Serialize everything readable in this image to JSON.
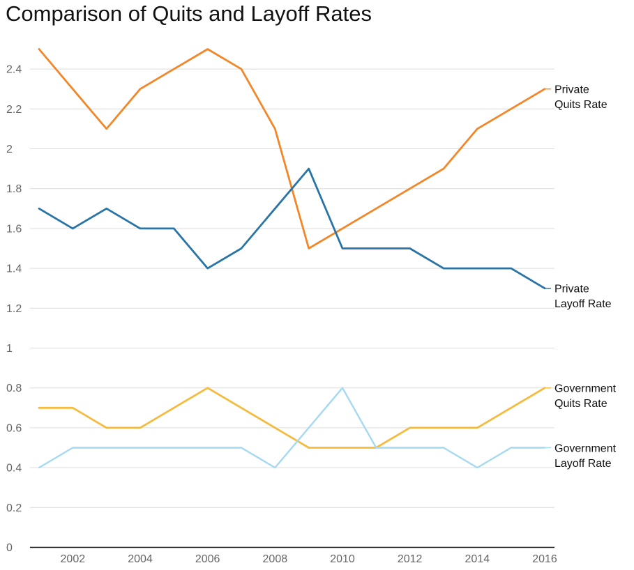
{
  "chart_data": {
    "type": "line",
    "title": "Comparison of Quits and Layoff Rates",
    "xlabel": "",
    "ylabel": "",
    "x": [
      2001,
      2002,
      2003,
      2004,
      2005,
      2006,
      2007,
      2008,
      2009,
      2010,
      2011,
      2012,
      2013,
      2014,
      2015,
      2016
    ],
    "xlim": [
      2001,
      2016
    ],
    "ylim": [
      0,
      2.5
    ],
    "grid": true,
    "legend": "inline labels at right end of each line",
    "x_ticks": [
      "2002",
      "2004",
      "2006",
      "2008",
      "2010",
      "2012",
      "2014",
      "2016"
    ],
    "y_ticks": [
      "0",
      "0.2",
      "0.4",
      "0.6",
      "0.8",
      "1",
      "1.2",
      "1.4",
      "1.6",
      "1.8",
      "2",
      "2.2",
      "2.4"
    ],
    "series": [
      {
        "label_lines": [
          "Private",
          "Quits Rate"
        ],
        "color": "#f2872a",
        "values": [
          2.5,
          2.3,
          2.1,
          2.3,
          2.4,
          2.5,
          2.4,
          2.1,
          1.5,
          1.6,
          1.7,
          1.8,
          1.9,
          2.1,
          2.2,
          2.3
        ]
      },
      {
        "label_lines": [
          "Private",
          "Layoff Rate"
        ],
        "color": "#2874a6",
        "values": [
          1.7,
          1.6,
          1.7,
          1.6,
          1.6,
          1.4,
          1.5,
          1.7,
          1.9,
          1.5,
          1.5,
          1.5,
          1.4,
          1.4,
          1.4,
          1.3
        ]
      },
      {
        "label_lines": [
          "Government",
          "Quits Rate"
        ],
        "color": "#f5bb3f",
        "values": [
          0.7,
          0.7,
          0.6,
          0.6,
          0.7,
          0.8,
          0.7,
          0.6,
          0.5,
          0.5,
          0.5,
          0.6,
          0.6,
          0.6,
          0.7,
          0.8
        ]
      },
      {
        "label_lines": [
          "Government",
          "Layoff Rate"
        ],
        "color": "#a4d9f2",
        "values": [
          0.4,
          0.5,
          0.5,
          0.5,
          0.5,
          0.5,
          0.5,
          0.4,
          0.6,
          0.8,
          0.5,
          0.5,
          0.5,
          0.4,
          0.5,
          0.5
        ]
      }
    ]
  }
}
